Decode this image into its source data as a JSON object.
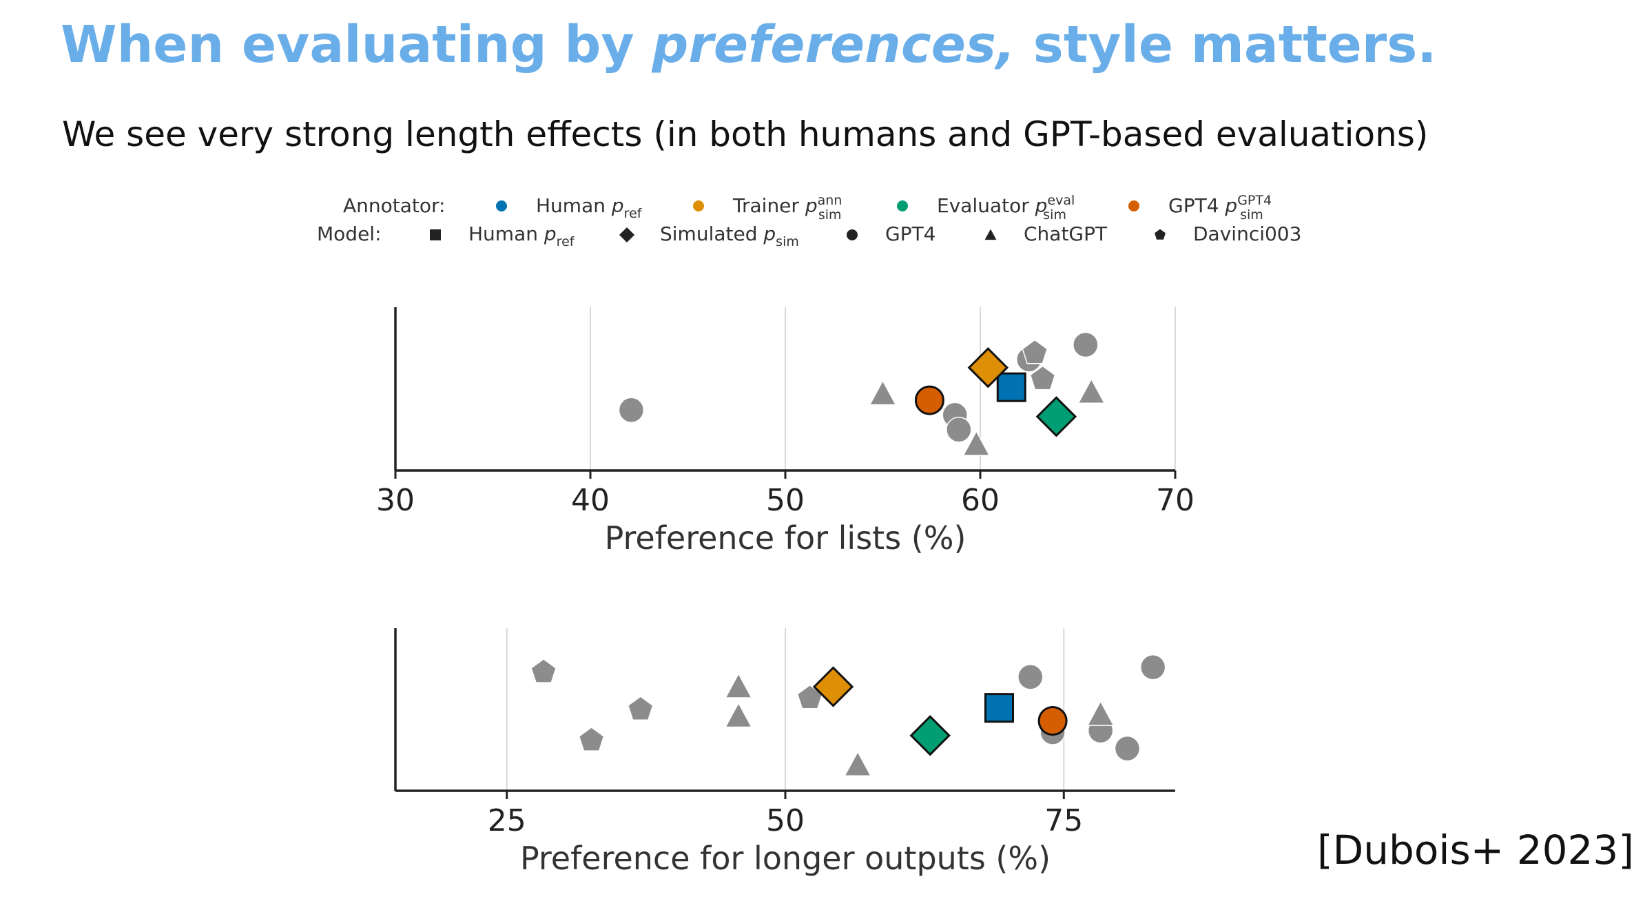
{
  "slide": {
    "title_before": "When evaluating by ",
    "title_italic": "preferences,",
    "title_after": " style matters.",
    "subtitle": "We see very strong length effects (in both humans and GPT-based evaluations)",
    "citation": "[Dubois+ 2023]"
  },
  "legend": {
    "annotator_label": "Annotator:",
    "annotators": [
      {
        "id": "human",
        "base": "Human p",
        "sub": "ref",
        "sup": "",
        "color": "#0173b2"
      },
      {
        "id": "trainer",
        "base": "Trainer p",
        "sub": "sim",
        "sup": "ann",
        "color": "#de8f05"
      },
      {
        "id": "evaluator",
        "base": "Evaluator p",
        "sub": "sim",
        "sup": "eval",
        "color": "#029e73"
      },
      {
        "id": "gpt4",
        "base": "GPT4 p",
        "sub": "sim",
        "sup": "GPT4",
        "color": "#d55e00"
      }
    ],
    "model_label": "Model:",
    "models": [
      {
        "id": "human",
        "base": "Human p",
        "sub": "ref",
        "shape": "square"
      },
      {
        "id": "sim",
        "base": "Simulated p",
        "sub": "sim",
        "shape": "diamond"
      },
      {
        "id": "gpt4",
        "base": "GPT4",
        "sub": "",
        "shape": "circle"
      },
      {
        "id": "chatgpt",
        "base": "ChatGPT",
        "sub": "",
        "shape": "triangle"
      },
      {
        "id": "davinci",
        "base": "Davinci003",
        "sub": "",
        "shape": "pentagon"
      }
    ]
  },
  "chart_data": [
    {
      "type": "scatter",
      "id": "lists",
      "xlabel": "Preference for lists (%)",
      "xlim": [
        30,
        70
      ],
      "xticks": [
        30,
        40,
        50,
        60,
        70
      ],
      "grid": "vertical",
      "gray_color": "#8c8c8c",
      "points": [
        {
          "x": 42.1,
          "y": 0.37,
          "shape": "circle",
          "annotator": "gray"
        },
        {
          "x": 55.0,
          "y": 0.47,
          "shape": "triangle",
          "annotator": "gray"
        },
        {
          "x": 58.7,
          "y": 0.34,
          "shape": "circle",
          "annotator": "gray"
        },
        {
          "x": 58.9,
          "y": 0.25,
          "shape": "circle",
          "annotator": "gray"
        },
        {
          "x": 59.8,
          "y": 0.16,
          "shape": "triangle",
          "annotator": "gray"
        },
        {
          "x": 62.5,
          "y": 0.68,
          "shape": "circle",
          "annotator": "gray"
        },
        {
          "x": 62.8,
          "y": 0.72,
          "shape": "pentagon",
          "annotator": "gray"
        },
        {
          "x": 63.2,
          "y": 0.56,
          "shape": "pentagon",
          "annotator": "gray"
        },
        {
          "x": 65.4,
          "y": 0.77,
          "shape": "circle",
          "annotator": "gray"
        },
        {
          "x": 65.7,
          "y": 0.48,
          "shape": "triangle",
          "annotator": "gray"
        },
        {
          "x": 61.6,
          "y": 0.51,
          "shape": "square",
          "annotator": "human"
        },
        {
          "x": 60.4,
          "y": 0.63,
          "shape": "diamond",
          "annotator": "trainer"
        },
        {
          "x": 63.9,
          "y": 0.33,
          "shape": "diamond",
          "annotator": "evaluator"
        },
        {
          "x": 57.4,
          "y": 0.43,
          "shape": "circle",
          "annotator": "gpt4"
        }
      ]
    },
    {
      "type": "scatter",
      "id": "length",
      "xlabel": "Preference for longer outputs (%)",
      "xlim": [
        15,
        85
      ],
      "xticks": [
        25,
        50,
        75
      ],
      "grid": "vertical",
      "gray_color": "#8c8c8c",
      "points": [
        {
          "x": 28.3,
          "y": 0.73,
          "shape": "pentagon",
          "annotator": "gray"
        },
        {
          "x": 32.6,
          "y": 0.31,
          "shape": "pentagon",
          "annotator": "gray"
        },
        {
          "x": 37.0,
          "y": 0.5,
          "shape": "pentagon",
          "annotator": "gray"
        },
        {
          "x": 45.8,
          "y": 0.64,
          "shape": "triangle",
          "annotator": "gray"
        },
        {
          "x": 45.8,
          "y": 0.46,
          "shape": "triangle",
          "annotator": "gray"
        },
        {
          "x": 52.2,
          "y": 0.57,
          "shape": "pentagon",
          "annotator": "gray"
        },
        {
          "x": 56.5,
          "y": 0.16,
          "shape": "triangle",
          "annotator": "gray"
        },
        {
          "x": 72.0,
          "y": 0.7,
          "shape": "circle",
          "annotator": "gray"
        },
        {
          "x": 74.0,
          "y": 0.36,
          "shape": "circle",
          "annotator": "gray"
        },
        {
          "x": 78.3,
          "y": 0.37,
          "shape": "circle",
          "annotator": "gray"
        },
        {
          "x": 78.3,
          "y": 0.47,
          "shape": "triangle",
          "annotator": "gray"
        },
        {
          "x": 80.7,
          "y": 0.26,
          "shape": "circle",
          "annotator": "gray"
        },
        {
          "x": 83.0,
          "y": 0.76,
          "shape": "circle",
          "annotator": "gray"
        },
        {
          "x": 69.2,
          "y": 0.51,
          "shape": "square",
          "annotator": "human"
        },
        {
          "x": 54.3,
          "y": 0.64,
          "shape": "diamond",
          "annotator": "trainer"
        },
        {
          "x": 63.0,
          "y": 0.34,
          "shape": "diamond",
          "annotator": "evaluator"
        },
        {
          "x": 74.0,
          "y": 0.43,
          "shape": "circle",
          "annotator": "gpt4"
        }
      ]
    }
  ]
}
